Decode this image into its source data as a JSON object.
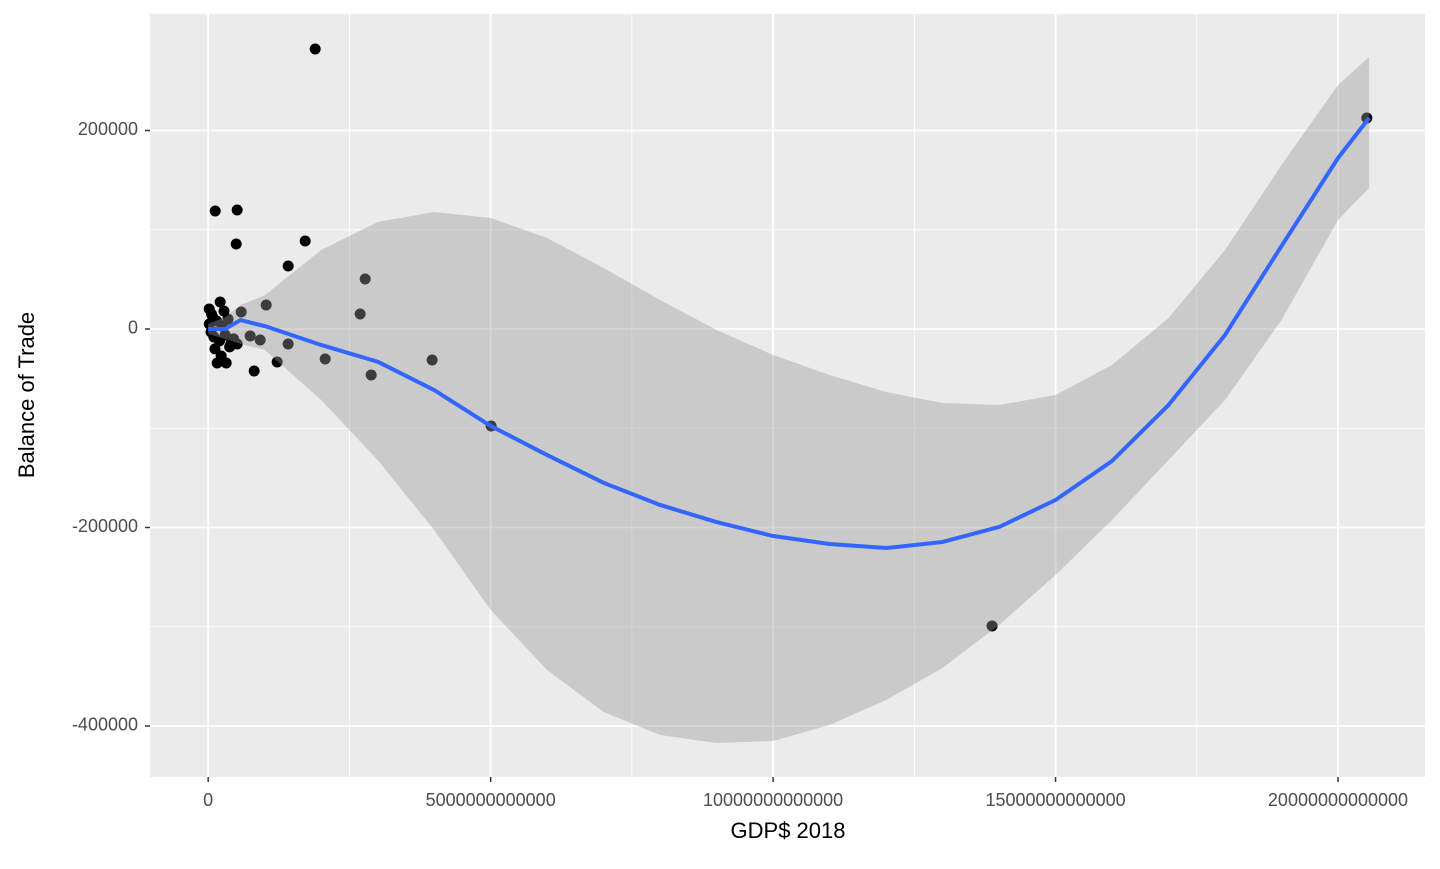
{
  "chart_data": {
    "type": "scatter",
    "x_label": "GDP$ 2018",
    "y_label": "Balance of Trade",
    "xlim": [
      -1030000000000,
      21540000000000
    ],
    "ylim": [
      -451400,
      317380
    ],
    "xticks": [
      0,
      5000000000000,
      10000000000000,
      15000000000000,
      20000000000000
    ],
    "yticks": [
      -400000,
      -200000,
      0,
      200000
    ],
    "x_minor_ticks": [
      2500000000000,
      7500000000000,
      12500000000000,
      17500000000000
    ],
    "y_minor_ticks": [
      -300000,
      -100000,
      100000
    ],
    "grid": true,
    "series": [
      {
        "color": "#000000",
        "x": [
          1894000000000,
          20510000000000,
          124000000000,
          513000000000,
          496000000000,
          1717000000000,
          1416000000000,
          2779000000000,
          1027000000000,
          584000000000,
          2690000000000,
          212000000000,
          18000000000,
          743000000000,
          920000000000,
          1416000000000,
          1221000000000,
          2071000000000,
          814000000000,
          2885000000000,
          3965000000000,
          5009000000000,
          13876000000000,
          159000000000,
          319000000000,
          230000000000,
          389000000000,
          513000000000,
          20000000000,
          50000000000,
          80000000000,
          100000000000,
          150000000000,
          200000000000,
          250000000000,
          300000000000,
          350000000000,
          400000000000,
          450000000000,
          60000000000,
          120000000000,
          280000000000,
          380000000000
        ],
        "values": [
          282100,
          212600,
          118900,
          119900,
          85600,
          88700,
          63500,
          50400,
          24200,
          17100,
          15100,
          27200,
          20200,
          -7100,
          -11100,
          -15100,
          -33200,
          -30200,
          -42300,
          -46300,
          -31200,
          -97700,
          -299200,
          -34300,
          -34300,
          -27200,
          -17100,
          -15100,
          5000,
          -3000,
          12000,
          -8000,
          8000,
          -12000,
          3000,
          -6000,
          10000,
          -15000,
          -10000,
          15000,
          -20000,
          18000,
          -18000
        ]
      }
    ],
    "smooth": {
      "color": "#3366FF",
      "band_color": "#999999",
      "band_opacity": 0.4,
      "x": [
        0,
        300000000000,
        570000000000,
        1000000000000,
        2000000000000,
        3000000000000,
        4000000000000,
        5000000000000,
        6000000000000,
        7000000000000,
        8000000000000,
        9000000000000,
        10000000000000,
        11000000000000,
        12000000000000,
        13000000000000,
        14000000000000,
        15000000000000,
        16000000000000,
        17000000000000,
        18000000000000,
        19000000000000,
        20000000000000,
        20550000000000
      ],
      "values": [
        0,
        0,
        9000,
        3000,
        -16100,
        -33000,
        -61500,
        -97700,
        -127000,
        -155000,
        -177300,
        -194500,
        -208600,
        -216600,
        -220700,
        -214600,
        -199500,
        -172300,
        -133000,
        -76600,
        -6000,
        83600,
        172300,
        212600
      ],
      "lower": [
        -5000,
        -10000,
        -15000,
        -21000,
        -71500,
        -132000,
        -202500,
        -283100,
        -343600,
        -385900,
        -409100,
        -417100,
        -415100,
        -399000,
        -373800,
        -341600,
        -298200,
        -247900,
        -192400,
        -132000,
        -71500,
        9100,
        109800,
        142100
      ],
      "upper": [
        5000,
        12000,
        24000,
        34000,
        79600,
        107800,
        117900,
        111800,
        91700,
        61500,
        29200,
        -1000,
        -26200,
        -46300,
        -63500,
        -74600,
        -76600,
        -66500,
        -36300,
        11100,
        79600,
        165200,
        245800,
        274000
      ]
    }
  }
}
